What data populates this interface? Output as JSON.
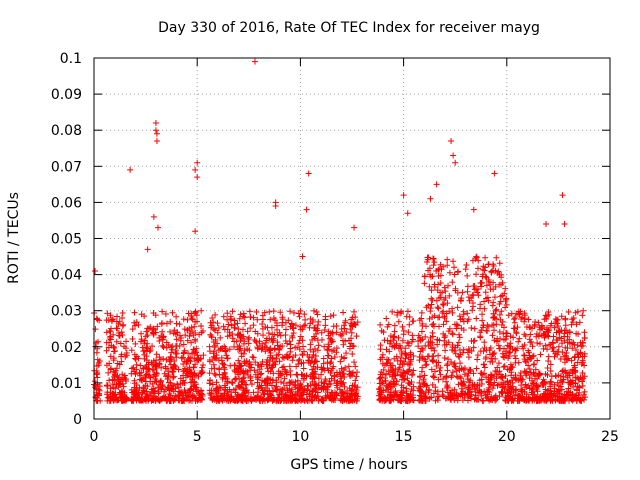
{
  "chart_data": {
    "type": "scatter",
    "title": "Day 330 of 2016, Rate Of TEC Index for receiver mayg",
    "xlabel": "GPS time / hours",
    "ylabel": "ROTI / TECUs",
    "xlim": [
      0,
      25
    ],
    "ylim": [
      0,
      0.1
    ],
    "xticks": [
      0,
      5,
      10,
      15,
      20,
      25
    ],
    "yticks": [
      0,
      0.01,
      0.02,
      0.03,
      0.04,
      0.05,
      0.06,
      0.07,
      0.08,
      0.09,
      0.1
    ],
    "grid": true,
    "marker": "+",
    "color": "#ff0000",
    "coverage": [
      {
        "x0": 0.0,
        "x1": 0.3
      },
      {
        "x0": 0.6,
        "x1": 1.6
      },
      {
        "x0": 1.8,
        "x1": 5.3
      },
      {
        "x0": 5.6,
        "x1": 10.9
      },
      {
        "x0": 11.0,
        "x1": 11.8
      },
      {
        "x0": 11.9,
        "x1": 12.8
      },
      {
        "x0": 13.8,
        "x1": 15.5
      },
      {
        "x0": 15.7,
        "x1": 23.8
      }
    ],
    "notable_points": [
      [
        0.05,
        0.041
      ],
      [
        1.75,
        0.069
      ],
      [
        2.6,
        0.047
      ],
      [
        2.9,
        0.056
      ],
      [
        3.0,
        0.082
      ],
      [
        3.0,
        0.08
      ],
      [
        3.05,
        0.079
      ],
      [
        3.05,
        0.077
      ],
      [
        3.1,
        0.053
      ],
      [
        4.9,
        0.069
      ],
      [
        5.0,
        0.071
      ],
      [
        5.0,
        0.067
      ],
      [
        4.9,
        0.052
      ],
      [
        7.8,
        0.099
      ],
      [
        8.8,
        0.06
      ],
      [
        8.8,
        0.059
      ],
      [
        10.4,
        0.068
      ],
      [
        10.3,
        0.058
      ],
      [
        10.1,
        0.045
      ],
      [
        12.6,
        0.053
      ],
      [
        15.0,
        0.062
      ],
      [
        15.2,
        0.057
      ],
      [
        16.3,
        0.061
      ],
      [
        16.6,
        0.065
      ],
      [
        17.3,
        0.077
      ],
      [
        17.4,
        0.073
      ],
      [
        17.5,
        0.071
      ],
      [
        19.4,
        0.068
      ],
      [
        18.4,
        0.058
      ],
      [
        21.9,
        0.054
      ],
      [
        22.7,
        0.062
      ],
      [
        22.8,
        0.054
      ],
      [
        23.7,
        0.03
      ]
    ],
    "band": {
      "low": 0.005,
      "typical_high": 0.03,
      "peak_hours": [
        16.0,
        20.0
      ],
      "peak_high": 0.045
    }
  }
}
